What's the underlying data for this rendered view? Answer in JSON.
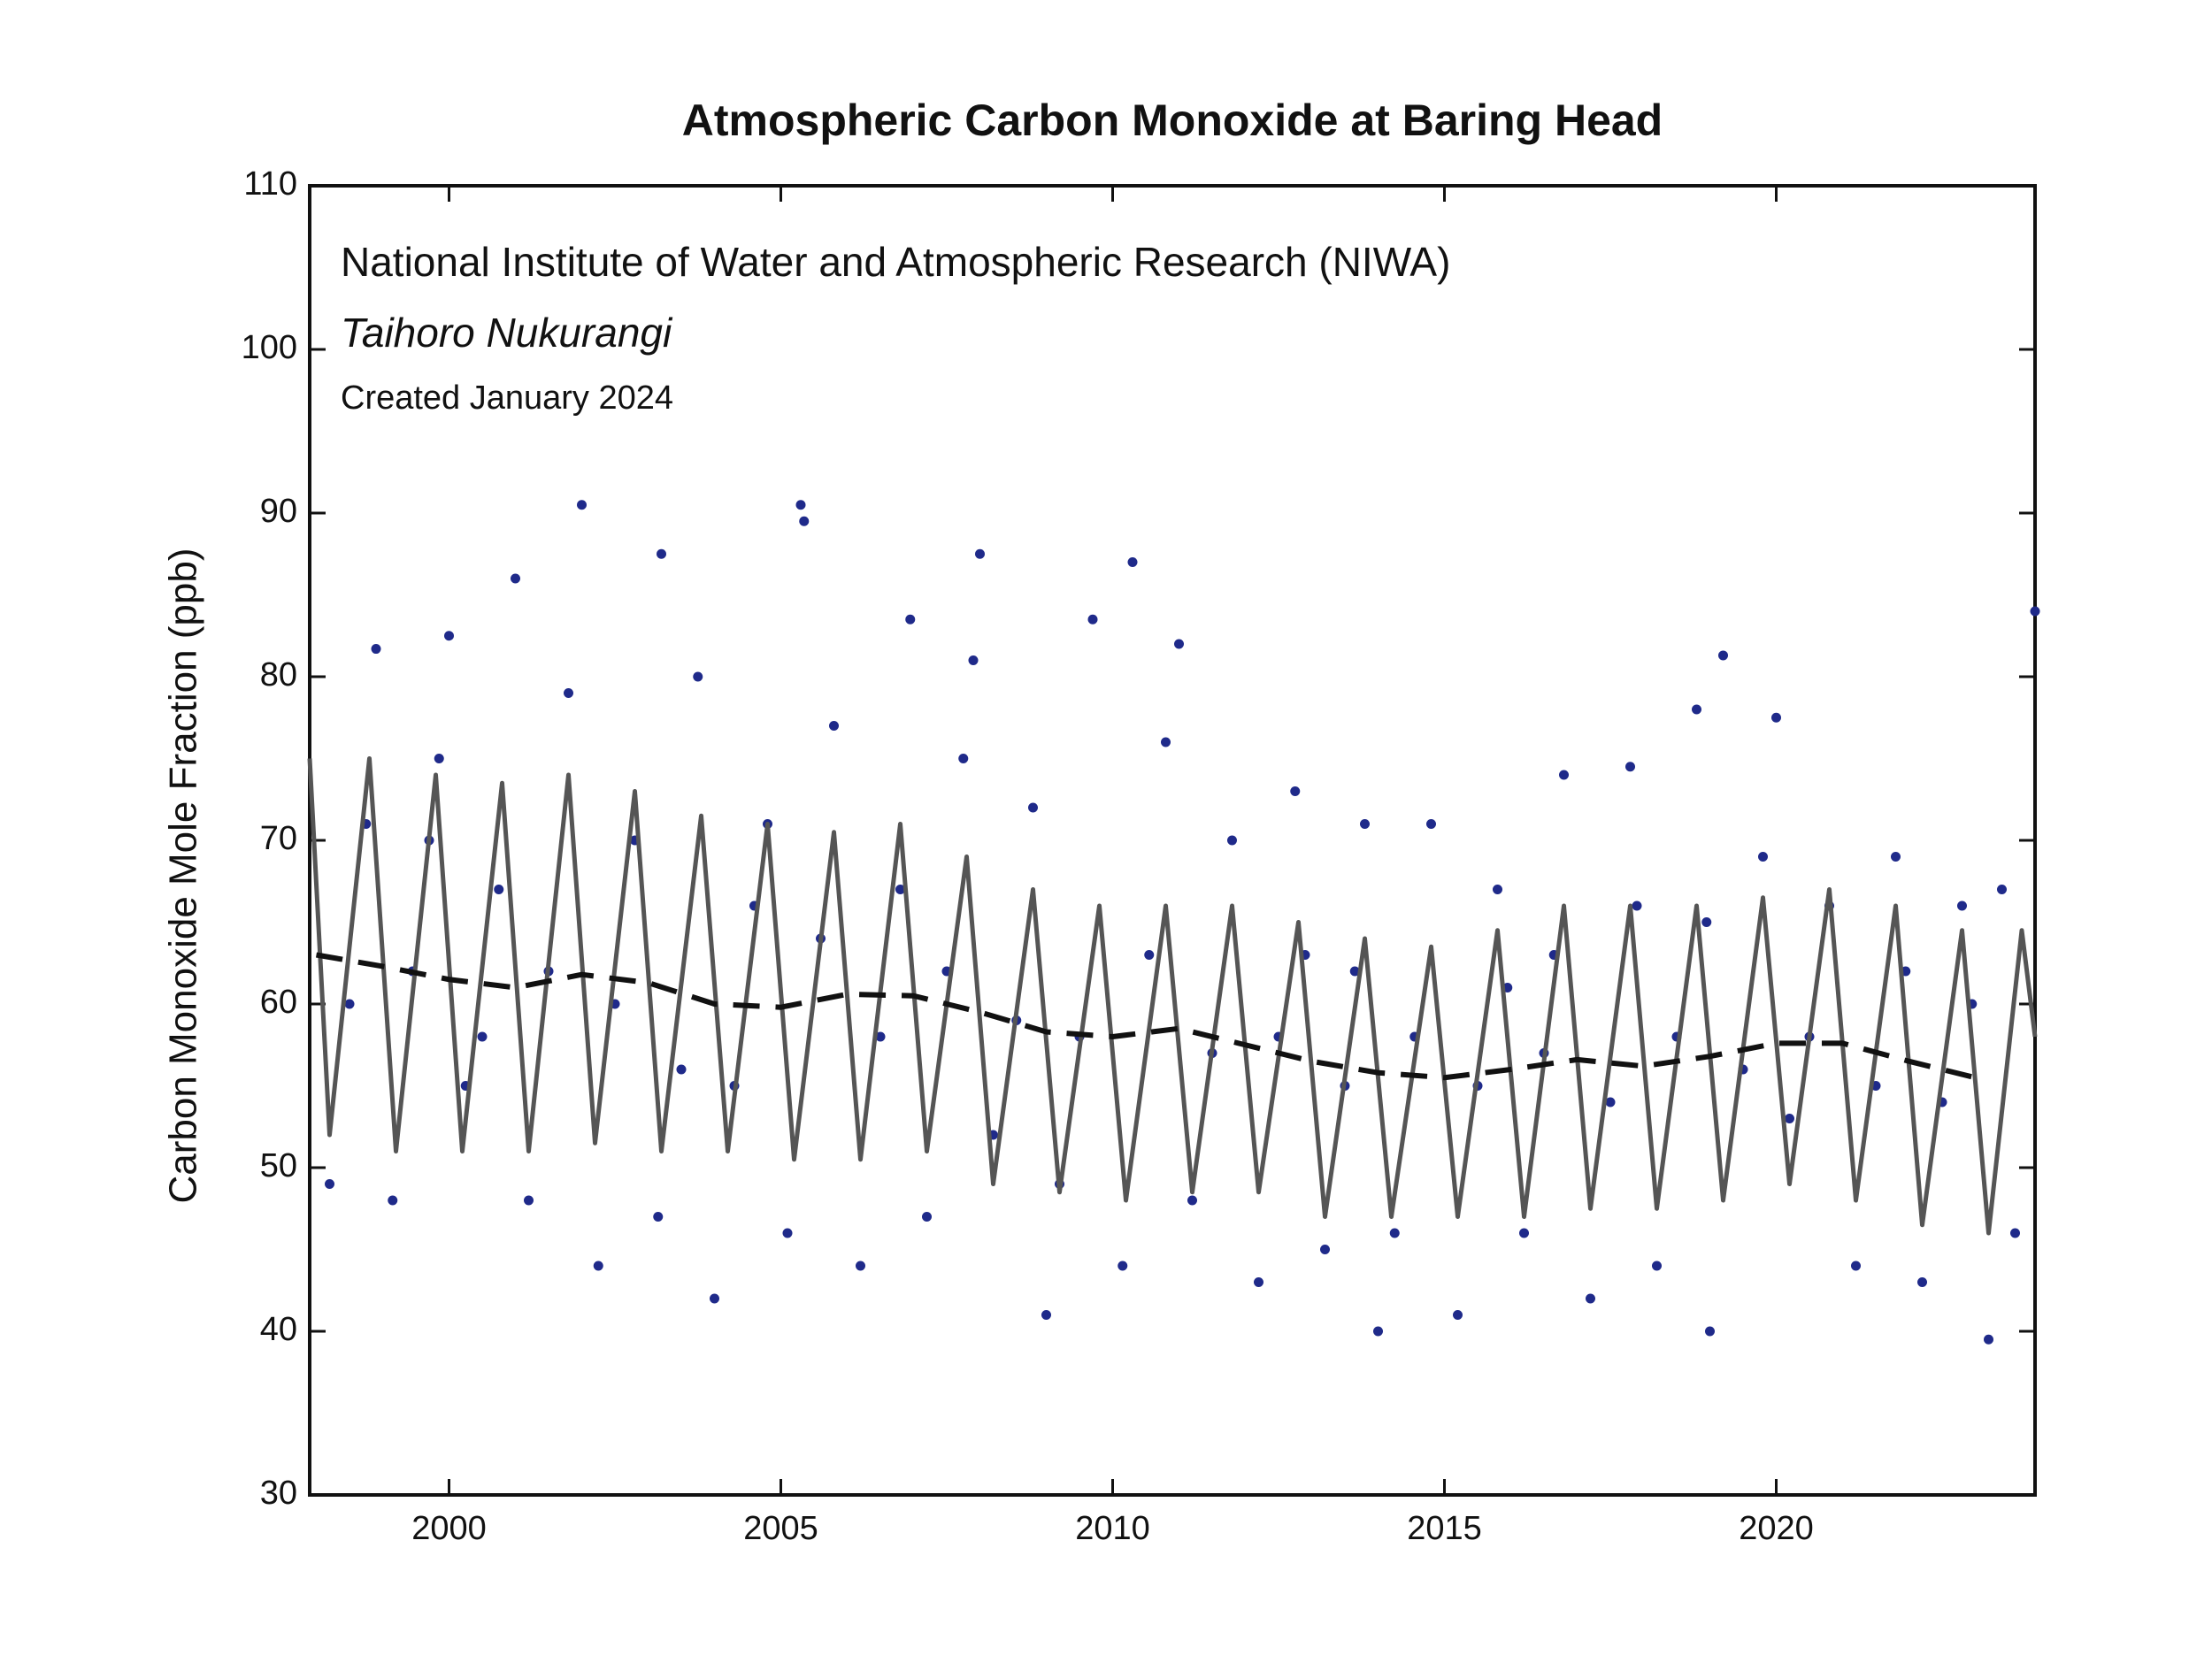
{
  "chart_data": {
    "type": "scatter",
    "title": "Atmospheric Carbon Monoxide at Baring Head",
    "annotations": [
      "National Institute of Water and Atmospheric Research (NIWA)",
      "Taihoro Nukurangi",
      "Created January 2024"
    ],
    "y_label": "Carbon Monoxide Mole Fraction (ppb)",
    "xlim": [
      1997.9,
      2023.9
    ],
    "xticks": [
      2000,
      2005,
      2010,
      2015,
      2020
    ],
    "ylim": [
      30,
      110
    ],
    "yticks": [
      30,
      40,
      50,
      60,
      70,
      80,
      90,
      100,
      110
    ],
    "series": [
      {
        "type": "scatter",
        "color": "#1f2a8a",
        "x": [
          1998.2,
          1998.5,
          1998.75,
          1998.9,
          1999.15,
          1999.45,
          1999.7,
          1999.85,
          2000.0,
          2000.25,
          2000.5,
          2000.75,
          2001.0,
          2001.2,
          2001.5,
          2001.8,
          2002.0,
          2002.25,
          2002.5,
          2002.8,
          2003.2,
          2003.15,
          2003.5,
          2003.75,
          2004.0,
          2004.3,
          2004.6,
          2004.8,
          2005.3,
          2005.35,
          2005.1,
          2005.6,
          2005.8,
          2006.2,
          2006.5,
          2006.8,
          2006.95,
          2007.2,
          2007.5,
          2007.75,
          2007.9,
          2008.0,
          2008.2,
          2008.55,
          2008.8,
          2009.0,
          2009.2,
          2009.5,
          2009.7,
          2010.3,
          2010.15,
          2010.55,
          2010.8,
          2011.0,
          2011.2,
          2011.5,
          2011.8,
          2012.2,
          2012.5,
          2012.75,
          2012.9,
          2013.2,
          2013.5,
          2013.8,
          2013.65,
          2014.0,
          2014.25,
          2014.55,
          2014.8,
          2015.2,
          2015.5,
          2015.8,
          2015.95,
          2016.2,
          2016.5,
          2016.8,
          2016.65,
          2017.2,
          2017.5,
          2017.8,
          2017.9,
          2018.2,
          2018.5,
          2018.8,
          2018.95,
          2019.0,
          2019.2,
          2019.5,
          2019.8,
          2020.0,
          2020.2,
          2020.5,
          2020.8,
          2021.2,
          2021.5,
          2021.8,
          2021.95,
          2022.2,
          2022.5,
          2022.8,
          2022.95,
          2023.2,
          2023.4,
          2023.6,
          2023.9
        ],
        "values": [
          49,
          60,
          71,
          81.7,
          48,
          62,
          70,
          75,
          82.5,
          55,
          58,
          67,
          86,
          48,
          62,
          79,
          90.5,
          44,
          60,
          70,
          87.5,
          47,
          56,
          80,
          42,
          55,
          66,
          71,
          90.5,
          89.5,
          46,
          64,
          77,
          44,
          58,
          67,
          83.5,
          47,
          62,
          75,
          81,
          87.5,
          52,
          59,
          72,
          41,
          49,
          58,
          83.5,
          87,
          44,
          63,
          76,
          82,
          48,
          57,
          70,
          43,
          58,
          73,
          63,
          45,
          55,
          71,
          62,
          40,
          46,
          58,
          71,
          41,
          55,
          67,
          61,
          46,
          57,
          74,
          63,
          42,
          54,
          74.5,
          66,
          44,
          58,
          78,
          65,
          40,
          81.3,
          56,
          69,
          77.5,
          53,
          58,
          66,
          44,
          55,
          69,
          62,
          43,
          54,
          66,
          60,
          39.5,
          67,
          46,
          84
        ]
      },
      {
        "type": "line",
        "color": "#555555",
        "dash": false,
        "x": [
          1997.9,
          1998.2,
          1998.8,
          1999.2,
          1999.8,
          2000.2,
          2000.8,
          2001.2,
          2001.8,
          2002.2,
          2002.8,
          2003.2,
          2003.8,
          2004.2,
          2004.8,
          2005.2,
          2005.8,
          2006.2,
          2006.8,
          2007.2,
          2007.8,
          2008.2,
          2008.8,
          2009.2,
          2009.8,
          2010.2,
          2010.8,
          2011.2,
          2011.8,
          2012.2,
          2012.8,
          2013.2,
          2013.8,
          2014.2,
          2014.8,
          2015.2,
          2015.8,
          2016.2,
          2016.8,
          2017.2,
          2017.8,
          2018.2,
          2018.8,
          2019.2,
          2019.8,
          2020.2,
          2020.8,
          2021.2,
          2021.8,
          2022.2,
          2022.8,
          2023.2,
          2023.7,
          2023.9
        ],
        "values": [
          75,
          52,
          75,
          51,
          74,
          51,
          73.5,
          51,
          74,
          51.5,
          73,
          51,
          71.5,
          51,
          71,
          50.5,
          70.5,
          50.5,
          71,
          51,
          69,
          49,
          67,
          48.5,
          66,
          48,
          66,
          48.5,
          66,
          48.5,
          65,
          47,
          64,
          47,
          63.5,
          47,
          64.5,
          47,
          66,
          47.5,
          66,
          47.5,
          66,
          48,
          66.5,
          49,
          67,
          48,
          66,
          46.5,
          64.5,
          46,
          64.5,
          58
        ]
      },
      {
        "type": "line",
        "color": "#111111",
        "dash": true,
        "x": [
          1998,
          1999,
          2000,
          2001,
          2002,
          2003,
          2004,
          2005,
          2006,
          2007,
          2008,
          2009,
          2010,
          2011,
          2012,
          2013,
          2014,
          2015,
          2016,
          2017,
          2018,
          2019,
          2020,
          2021,
          2022,
          2023
        ],
        "values": [
          63,
          62.3,
          61.5,
          61,
          61.8,
          61.3,
          60,
          59.8,
          60.6,
          60.5,
          59.5,
          58.3,
          58,
          58.5,
          57.5,
          56.5,
          55.8,
          55.5,
          56,
          56.6,
          56.2,
          56.8,
          57.6,
          57.6,
          56.5,
          55.5
        ]
      }
    ]
  }
}
